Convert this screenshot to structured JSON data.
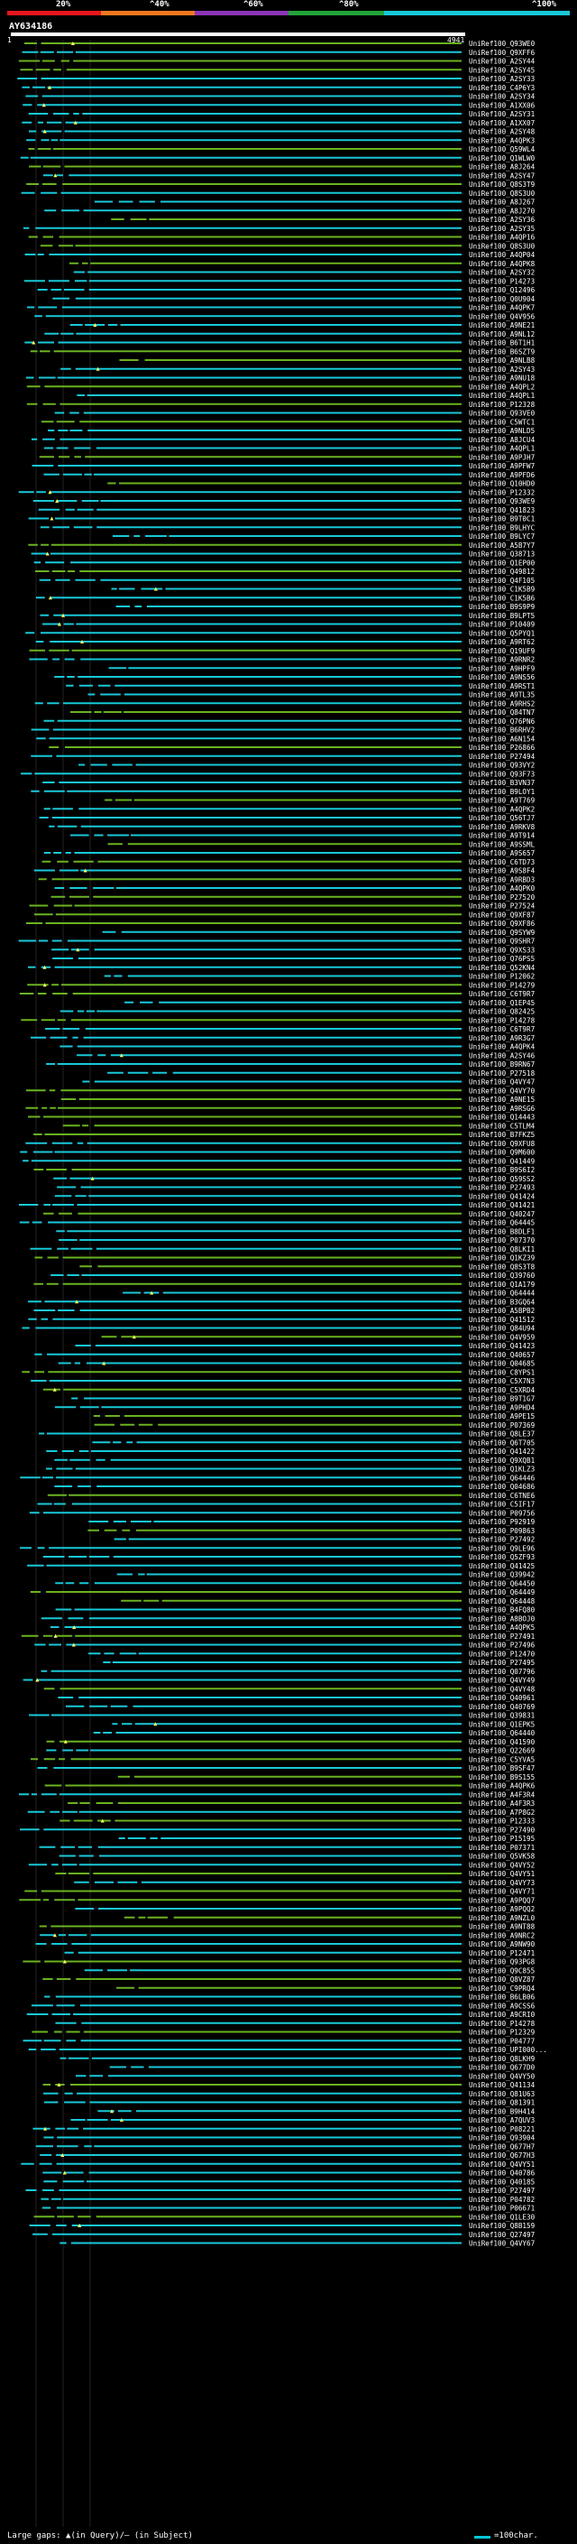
{
  "header": {
    "percent_labels": [
      "20%",
      "^40%",
      "^60%",
      "^80%",
      "^100%"
    ],
    "colors": [
      "#e8151d",
      "#f07820",
      "#8c35b8",
      "#22a53a",
      "#18c8d8"
    ]
  },
  "query": {
    "title": "AY634186",
    "start": "1",
    "end": "4941"
  },
  "hit_colors": {
    "high": "#18c8d8",
    "mid": "#6ab220",
    "gap_marker": "#ffff60"
  },
  "hits": [
    "UniRef100_Q93WE0",
    "UniRef100_Q9XFF6",
    "UniRef100_A2SY44",
    "UniRef100_A2SY45",
    "UniRef100_A2SY33",
    "UniRef100_C4P6Y3",
    "UniRef100_A2SY34",
    "UniRef100_A1XX06",
    "UniRef100_A2SY31",
    "UniRef100_A1XX07",
    "UniRef100_A2SY48",
    "UniRef100_A4QPK3",
    "UniRef100_Q59WL4",
    "UniRef100_Q1WLW0",
    "UniRef100_A8J264",
    "UniRef100_A2SY47",
    "UniRef100_Q8S3T9",
    "UniRef100_Q8S3U0",
    "UniRef100_A8J267",
    "UniRef100_A8J270",
    "UniRef100_A2SY36",
    "UniRef100_A2SY35",
    "UniRef100_A4QP16",
    "UniRef100_Q8S3U0",
    "UniRef100_A4QP04",
    "UniRef100_A4QPK8",
    "UniRef100_A2SY32",
    "UniRef100_P14273",
    "UniRef100_Q12496",
    "UniRef100_Q0U904",
    "UniRef100_A4QPK7",
    "UniRef100_Q4V956",
    "UniRef100_A9NE21",
    "UniRef100_A9NL12",
    "UniRef100_B6T1H1",
    "UniRef100_B6SZT9",
    "UniRef100_A9NLB8",
    "UniRef100_A2SY43",
    "UniRef100_A9NU18",
    "UniRef100_A4QPL2",
    "UniRef100_A4QPL1",
    "UniRef100_P12328",
    "UniRef100_Q93VE0",
    "UniRef100_C5WTC1",
    "UniRef100_A9NLD5",
    "UniRef100_A8JCU4",
    "UniRef100_A4QPL1",
    "UniRef100_A9PJH7",
    "UniRef100_A9PFW7",
    "UniRef100_A9PFD6",
    "UniRef100_Q10HD0",
    "UniRef100_P12332",
    "UniRef100_Q93WE9",
    "UniRef100_Q41823",
    "UniRef100_B9T0C1",
    "UniRef100_B9LHYC",
    "UniRef100_B9LYC7",
    "UniRef100_A5B7Y7",
    "UniRef100_Q38713",
    "UniRef100_Q1EP00",
    "UniRef100_Q49812",
    "UniRef100_Q4F105",
    "UniRef100_C1K5B9",
    "UniRef100_C1K5B6",
    "UniRef100_B9S9P9",
    "UniRef100_B9LPT5",
    "UniRef100_P10409",
    "UniRef100_Q5PYQ1",
    "UniRef100_A9RT62",
    "UniRef100_Q19UF9",
    "UniRef100_A9RNR2",
    "UniRef100_A9HPF9",
    "UniRef100_A9NS56",
    "UniRef100_A9RST1",
    "UniRef100_A9TL35",
    "UniRef100_A9RHS2",
    "UniRef100_Q84TN7",
    "UniRef100_Q76PN6",
    "UniRef100_B6RHV2",
    "UniRef100_A6N154",
    "UniRef100_P26866",
    "UniRef100_P27494",
    "UniRef100_Q93VY2",
    "UniRef100_Q93F73",
    "UniRef100_B3VN37",
    "UniRef100_B9LOY1",
    "UniRef100_A9T769",
    "UniRef100_A4QPK2",
    "UniRef100_Q56TJ7",
    "UniRef100_A9RKV8",
    "UniRef100_A9T914",
    "UniRef100_A9SSML",
    "UniRef100_A9S657",
    "UniRef100_C6TD73",
    "UniRef100_A9S8F4",
    "UniRef100_A9RBD3",
    "UniRef100_A4QPK0",
    "UniRef100_P27520",
    "UniRef100_P27524",
    "UniRef100_Q9XF87",
    "UniRef100_Q9XF86",
    "UniRef100_Q9SYW9",
    "UniRef100_Q9SHR7",
    "UniRef100_Q9XS33",
    "UniRef100_Q76PS5",
    "UniRef100_Q52KN4",
    "UniRef100_P12062",
    "UniRef100_P14279",
    "UniRef100_C6T9R7",
    "UniRef100_Q1EP45",
    "UniRef100_Q82425",
    "UniRef100_P14278",
    "UniRef100_C6T9R7",
    "UniRef100_A9R3G7",
    "UniRef100_A4QPK4",
    "UniRef100_A2SY46",
    "UniRef100_B9RN67",
    "UniRef100_P27518",
    "UniRef100_Q4VY47",
    "UniRef100_Q4VY70",
    "UniRef100_A9NE15",
    "UniRef100_A9RSG6",
    "UniRef100_Q14443",
    "UniRef100_C5TLM4",
    "UniRef100_B7FKZ5",
    "UniRef100_Q9XFU8",
    "UniRef100_Q9M600",
    "UniRef100_Q41449",
    "UniRef100_B9S6I2",
    "UniRef100_Q59SS2",
    "UniRef100_P27493",
    "UniRef100_Q41424",
    "UniRef100_Q41421",
    "UniRef100_Q40247",
    "UniRef100_Q64445",
    "UniRef100_B8DLF1",
    "UniRef100_P07370",
    "UniRef100_Q8LKI1",
    "UniRef100_Q1KZ39",
    "UniRef100_Q8S3T8",
    "UniRef100_Q39760",
    "UniRef100_Q1A179",
    "UniRef100_Q64444",
    "UniRef100_B3GQ64",
    "UniRef100_A5BPB2",
    "UniRef100_Q41512",
    "UniRef100_Q84U94",
    "UniRef100_Q4V959",
    "UniRef100_Q41423",
    "UniRef100_Q40657",
    "UniRef100_Q04685",
    "UniRef100_C8YPS1",
    "UniRef100_C5X7N3",
    "UniRef100_C5XRD4",
    "UniRef100_B9T1G7",
    "UniRef100_A9PHD4",
    "UniRef100_A9PE15",
    "UniRef100_P07369",
    "UniRef100_Q8LE37",
    "UniRef100_Q6T705",
    "UniRef100_Q41422",
    "UniRef100_Q9XQB1",
    "UniRef100_Q1KLZ3",
    "UniRef100_Q64446",
    "UniRef100_Q04686",
    "UniRef100_C6TNE6",
    "UniRef100_C5IF17",
    "UniRef100_P09756",
    "UniRef100_P92919",
    "UniRef100_P09863",
    "UniRef100_P27492",
    "UniRef100_Q9LE96",
    "UniRef100_Q5ZF93",
    "UniRef100_Q41425",
    "UniRef100_Q39942",
    "UniRef100_Q64450",
    "UniRef100_Q64449",
    "UniRef100_Q64448",
    "UniRef100_B4FQ80",
    "UniRef100_A8BOJ0",
    "UniRef100_A4QPK5",
    "UniRef100_P27491",
    "UniRef100_P27496",
    "UniRef100_P12470",
    "UniRef100_P27495",
    "UniRef100_Q07796",
    "UniRef100_Q4VY49",
    "UniRef100_Q4VY48",
    "UniRef100_Q40961",
    "UniRef100_Q40769",
    "UniRef100_Q39831",
    "UniRef100_Q1EPK5",
    "UniRef100_Q64440",
    "UniRef100_Q41590",
    "UniRef100_Q22669",
    "UniRef100_C5YVA5",
    "UniRef100_B9SF47",
    "UniRef100_B9S155",
    "UniRef100_A4QPK6",
    "UniRef100_A4F3R4",
    "UniRef100_A4F3R3",
    "UniRef100_A7P8G2",
    "UniRef100_P12333",
    "UniRef100_P27490",
    "UniRef100_P15195",
    "UniRef100_P07371",
    "UniRef100_Q5VK58",
    "UniRef100_Q4VY52",
    "UniRef100_Q4VY51",
    "UniRef100_Q4VY73",
    "UniRef100_Q4VY71",
    "UniRef100_A9PQQ7",
    "UniRef100_A9PQQ2",
    "UniRef100_A9NZL0",
    "UniRef100_A9NT88",
    "UniRef100_A9NRC2",
    "UniRef100_A9NW90",
    "UniRef100_P12471",
    "UniRef100_Q93PG8",
    "UniRef100_Q9C855",
    "UniRef100_Q8VZ87",
    "UniRef100_C9PRQ4",
    "UniRef100_B6LB06",
    "UniRef100_A9CSS6",
    "UniRef100_A9CRI0",
    "UniRef100_P14278",
    "UniRef100_P12329",
    "UniRef100_P04777",
    "UniRef100_UPI000...",
    "UniRef100_Q8LKH9",
    "UniRef100_Q677D0",
    "UniRef100_Q4VY50",
    "UniRef100_Q41134",
    "UniRef100_Q81U63",
    "UniRef100_Q81391",
    "UniRef100_B9H414",
    "UniRef100_A7QUV3",
    "UniRef100_P08221",
    "UniRef100_Q93904",
    "UniRef100_Q677H7",
    "UniRef100_Q677H3",
    "UniRef100_Q4VY51",
    "UniRef100_Q40786",
    "UniRef100_Q40185",
    "UniRef100_P27497",
    "UniRef100_P04782",
    "UniRef100_P06671",
    "UniRef100_Q1LE30",
    "UniRef100_Q8B159",
    "UniRef100_Q27497",
    "UniRef100_Q4VY67"
  ],
  "footer": {
    "legend": "Large gaps: ▲(in Query)/– (in Subject)",
    "scale": "=100char."
  }
}
